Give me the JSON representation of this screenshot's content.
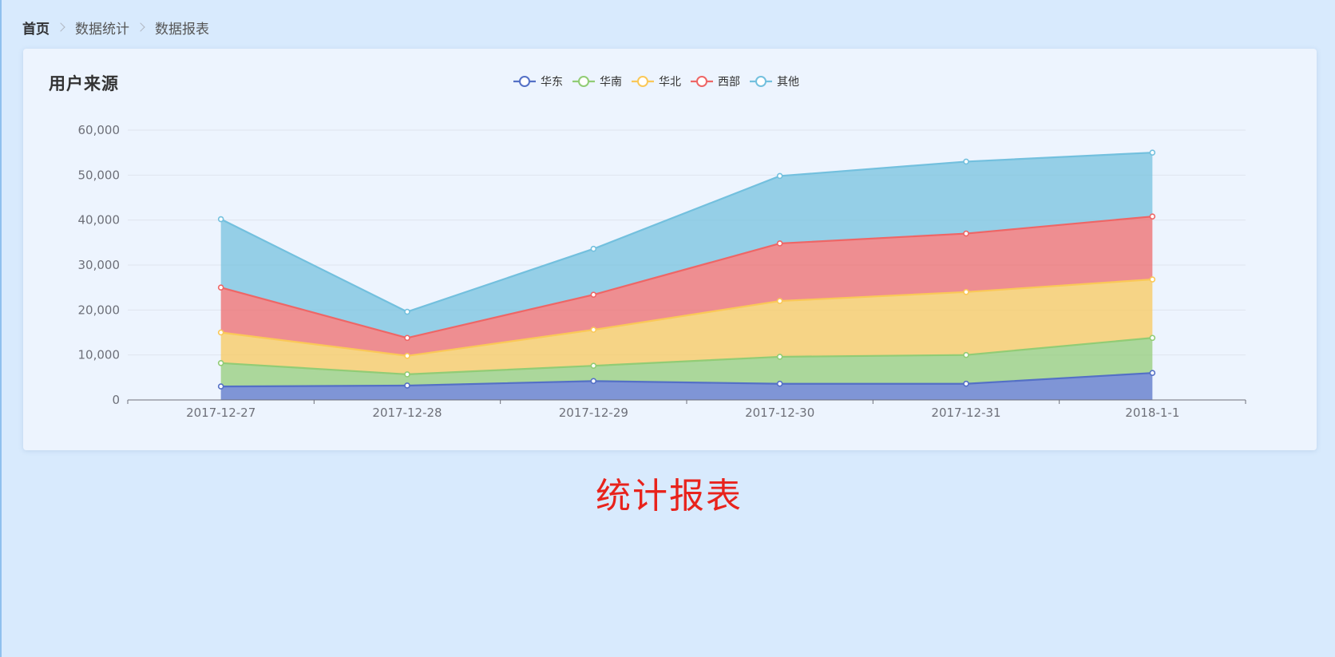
{
  "breadcrumb": {
    "items": [
      "首页",
      "数据统计",
      "数据报表"
    ]
  },
  "card": {
    "title": "用户来源"
  },
  "chart_data": {
    "type": "area",
    "stacked": true,
    "title": "用户来源",
    "categories": [
      "2017-12-27",
      "2017-12-28",
      "2017-12-29",
      "2017-12-30",
      "2017-12-31",
      "2018-1-1"
    ],
    "ylim": [
      0,
      60000
    ],
    "yticks": [
      0,
      10000,
      20000,
      30000,
      40000,
      50000,
      60000
    ],
    "ytick_labels": [
      "0",
      "10,000",
      "20,000",
      "30,000",
      "40,000",
      "50,000",
      "60,000"
    ],
    "grid": true,
    "legend_position": "top-center",
    "series": [
      {
        "name": "华东",
        "color": "#5470c6",
        "values": [
          3000,
          3200,
          4200,
          3600,
          3600,
          6000
        ]
      },
      {
        "name": "华南",
        "color": "#91cc75",
        "values": [
          5200,
          2500,
          3400,
          6000,
          6400,
          7800
        ]
      },
      {
        "name": "华北",
        "color": "#fac858",
        "values": [
          6800,
          4100,
          8000,
          12400,
          14000,
          13000
        ]
      },
      {
        "name": "西部",
        "color": "#ee6666",
        "values": [
          10000,
          4000,
          7800,
          12800,
          13000,
          14000
        ]
      },
      {
        "name": "其他",
        "color": "#73c0de",
        "values": [
          15200,
          5800,
          10200,
          15000,
          16000,
          14200
        ]
      }
    ]
  },
  "caption": {
    "text": "统计报表"
  }
}
